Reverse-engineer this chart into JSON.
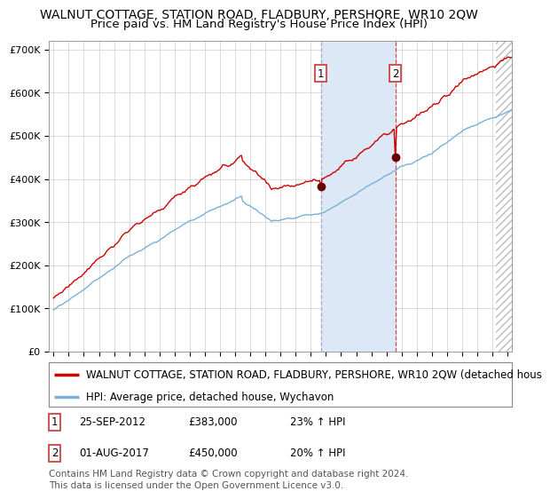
{
  "title": "WALNUT COTTAGE, STATION ROAD, FLADBURY, PERSHORE, WR10 2QW",
  "subtitle": "Price paid vs. HM Land Registry's House Price Index (HPI)",
  "ylim": [
    0,
    720000
  ],
  "yticks": [
    0,
    100000,
    200000,
    300000,
    400000,
    500000,
    600000,
    700000
  ],
  "ytick_labels": [
    "£0",
    "£100K",
    "£200K",
    "£300K",
    "£400K",
    "£500K",
    "£600K",
    "£700K"
  ],
  "year_start": 1995,
  "year_end": 2025,
  "hpi_color": "#7ab0d4",
  "price_color": "#cc0000",
  "sale1_year": 2012,
  "sale1_month": 9,
  "sale1_price": 383000,
  "sale1_date_label": "25-SEP-2012",
  "sale1_hpi_pct": "23%",
  "sale2_year": 2017,
  "sale2_month": 8,
  "sale2_price": 450000,
  "sale2_date_label": "01-AUG-2017",
  "sale2_hpi_pct": "20%",
  "legend_line1": "WALNUT COTTAGE, STATION ROAD, FLADBURY, PERSHORE, WR10 2QW (detached hous",
  "legend_line2": "HPI: Average price, detached house, Wychavon",
  "footnote": "Contains HM Land Registry data © Crown copyright and database right 2024.\nThis data is licensed under the Open Government Licence v3.0.",
  "background_color": "#ffffff",
  "grid_color": "#cccccc",
  "shade_color": "#dce8f5",
  "title_fontsize": 10,
  "subtitle_fontsize": 9.5,
  "tick_fontsize": 8,
  "legend_fontsize": 8.5,
  "footnote_fontsize": 7.5
}
